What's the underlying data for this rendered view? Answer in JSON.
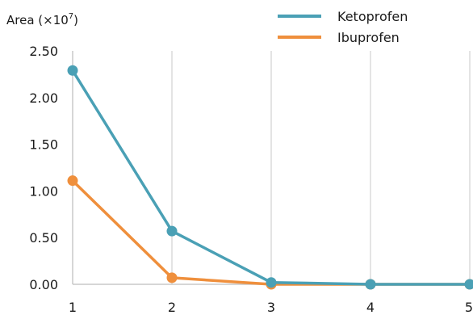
{
  "chart_data": {
    "type": "line",
    "ylabel_prefix": "Area (×10",
    "ylabel_exp": "7",
    "ylabel_suffix": ")",
    "x": [
      1,
      2,
      3,
      4,
      5
    ],
    "ylim": [
      0,
      2.5
    ],
    "yticks": [
      "0.00",
      "0.50",
      "1.00",
      "1.50",
      "2.00",
      "2.50"
    ],
    "xticks": [
      "1",
      "2",
      "3",
      "4",
      "5"
    ],
    "grid": "vertical",
    "legend_position": "top-right",
    "series": [
      {
        "name": "Ketoprofen",
        "values": [
          2.29,
          0.57,
          0.02,
          0.0,
          0.0
        ],
        "color": "#4aa0b5"
      },
      {
        "name": "Ibuprofen",
        "values": [
          1.11,
          0.07,
          0.0,
          0.0,
          0.0
        ],
        "color": "#ef8f3c"
      }
    ]
  }
}
